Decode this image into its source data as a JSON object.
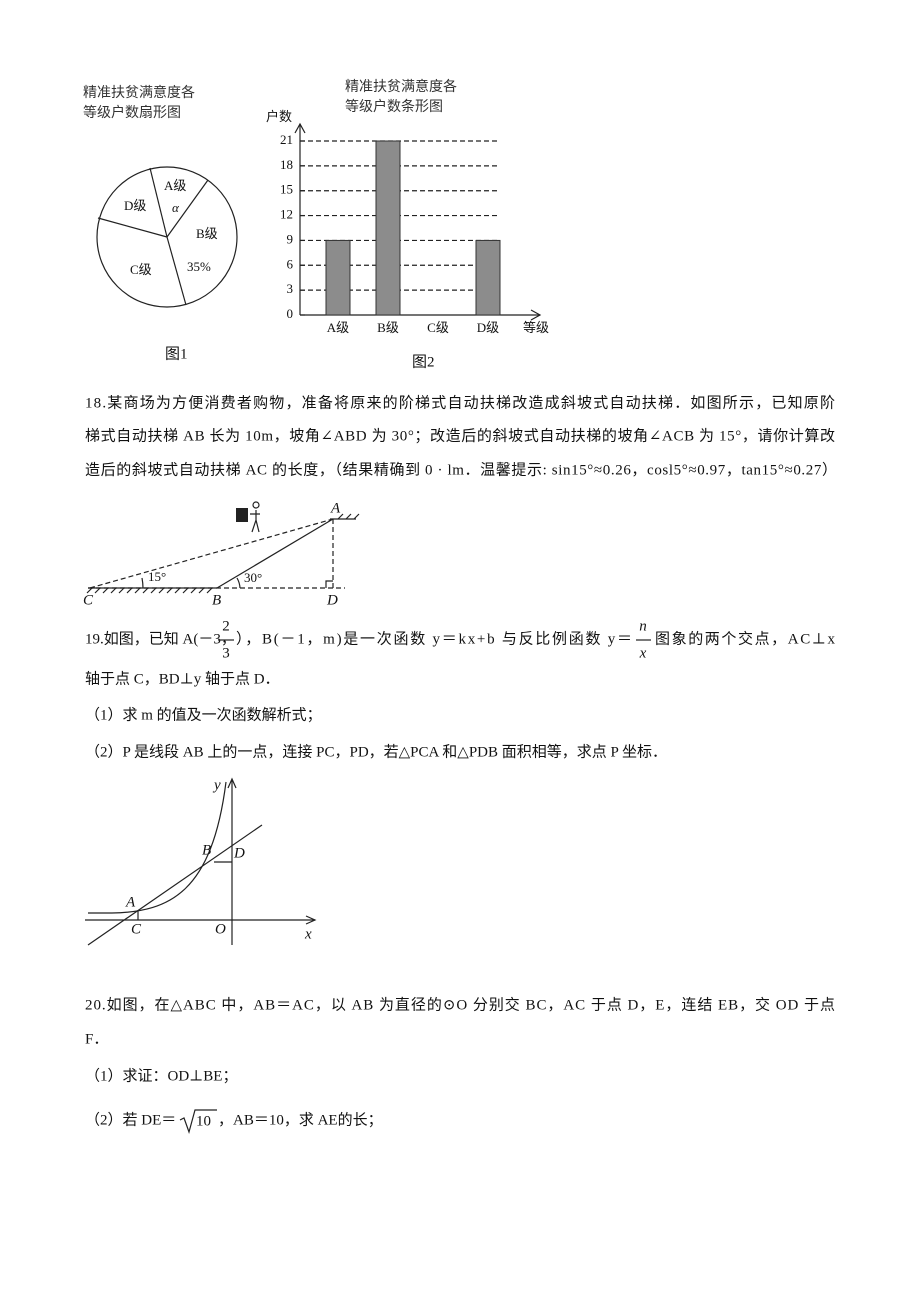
{
  "figure1": {
    "title_lines": [
      "精准扶贫满意度各",
      "等级户数扇形图"
    ],
    "labels": [
      "A级",
      "B级",
      "C级",
      "D级"
    ],
    "alpha": "α",
    "b_percent": "35%",
    "caption": "图1"
  },
  "figure2": {
    "title_lines": [
      "精准扶贫满意度各",
      "等级户数条形图"
    ],
    "y_label": "户数",
    "yticks": [
      0,
      3,
      6,
      9,
      12,
      15,
      18,
      21
    ],
    "categories": [
      "A级",
      "B级",
      "C级",
      "D级"
    ],
    "values": [
      9,
      21,
      0,
      9
    ],
    "x_label": "等级",
    "caption": "图2"
  },
  "q18": {
    "lines": [
      "18.某商场为方便消费者购物，准备将原来的阶梯式自动扶梯改造成斜坡式自动扶梯．如图所示，已知原阶",
      "梯式自动扶梯 AB 长为 10m，坡角∠ABD 为 30°；改造后的斜坡式自动扶梯的坡角∠ACB 为 15°，请你计算改",
      "造后的斜坡式自动扶梯 AC 的长度，（结果精确到 0 · lm．温馨提示: sin15°≈0.26，cosl5°≈0.97，tan15°≈0.27）"
    ],
    "figure": {
      "A": "A",
      "B": "B",
      "C": "C",
      "D": "D",
      "angle_c": "15°",
      "angle_b": "30°"
    }
  },
  "q19": {
    "line1": [
      "19.如图，已知 A(－3，",
      "），B(－1，m)是一次函数 y＝kx+b 与反比例函数 y＝",
      "图象的两个交点，AC⊥x"
    ],
    "frac1": [
      "2",
      "3"
    ],
    "frac2": [
      "n",
      "x"
    ],
    "lines": [
      "轴于点 C，BD⊥y 轴于点 D．",
      "（1）求 m 的值及一次函数解析式；",
      "（2）P 是线段 AB 上的一点，连接 PC，PD，若△PCA 和△PDB 面积相等，求点 P 坐标．"
    ],
    "figure": {
      "y": "y",
      "x": "x",
      "O": "O",
      "A": "A",
      "B": "B",
      "C": "C",
      "D": "D"
    }
  },
  "q20": {
    "lines": [
      "20.如图，在△ABC 中，AB＝AC，以 AB 为直径的⊙O 分别交 BC，AC 于点 D，E，连结 EB，交 OD 于点",
      "F．",
      "（1）求证：OD⊥BE；"
    ],
    "part2": [
      "（2）若 DE＝",
      "10",
      "，AB＝10，求 AE的长；"
    ]
  }
}
